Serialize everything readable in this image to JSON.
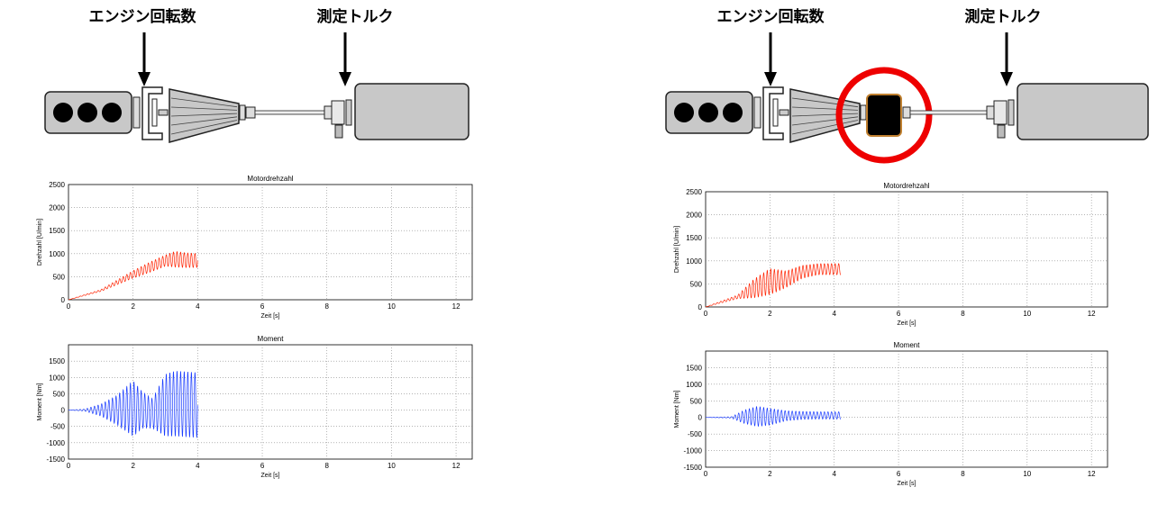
{
  "colors": {
    "rpm": "#ff2200",
    "torque": "#1a3cff",
    "highlight": "#ee0000",
    "body": "#c8c8c8"
  },
  "panels": [
    {
      "id": "left",
      "label_engine": "エンジン回転数",
      "label_torque": "測定トルク",
      "has_damper": false,
      "chart_data": [
        {
          "type": "line",
          "title": "Motordrehzahl",
          "xlabel": "Zeit [s]",
          "ylabel": "Drehzahl [U/min]",
          "xlim": [
            0,
            12.5
          ],
          "ylim": [
            0,
            2500
          ],
          "xticks": [
            0,
            2,
            4,
            6,
            8,
            10,
            12
          ],
          "yticks": [
            0,
            500,
            1000,
            1500,
            2000,
            2500
          ],
          "grid": true,
          "series": [
            {
              "color": "#ff2200",
              "x": [
                0,
                1,
                2,
                2.5,
                3,
                3.3,
                3.6,
                4
              ],
              "y_mid": [
                0,
                200,
                550,
                700,
                850,
                880,
                860,
                850
              ],
              "y_amp": [
                0,
                20,
                80,
                110,
                120,
                170,
                160,
                150
              ]
            }
          ]
        },
        {
          "type": "line",
          "title": "Moment",
          "xlabel": "Zeit [s]",
          "ylabel": "Moment [Nm]",
          "xlim": [
            0,
            12.5
          ],
          "ylim": [
            -1500,
            2000
          ],
          "xticks": [
            0,
            2,
            4,
            6,
            8,
            10,
            12
          ],
          "yticks": [
            -1500,
            -1000,
            -500,
            0,
            500,
            1000,
            1500
          ],
          "grid": true,
          "series": [
            {
              "color": "#1a3cff",
              "x": [
                0,
                0.5,
                1,
                1.5,
                2,
                2.3,
                2.6,
                3,
                3.3,
                3.6,
                4
              ],
              "y_mid": [
                0,
                0,
                0,
                0,
                50,
                0,
                -100,
                150,
                200,
                180,
                150
              ],
              "y_amp": [
                0,
                30,
                180,
                450,
                850,
                550,
                450,
                950,
                1000,
                1000,
                1000
              ]
            }
          ]
        }
      ]
    },
    {
      "id": "right",
      "label_engine": "エンジン回転数",
      "label_torque": "測定トルク",
      "has_damper": true,
      "chart_data": [
        {
          "type": "line",
          "title": "Motordrehzahl",
          "xlabel": "Zeit [s]",
          "ylabel": "Drehzahl [U/min]",
          "xlim": [
            0,
            12.5
          ],
          "ylim": [
            0,
            2500
          ],
          "xticks": [
            0,
            2,
            4,
            6,
            8,
            10,
            12
          ],
          "yticks": [
            0,
            500,
            1000,
            1500,
            2000,
            2500
          ],
          "grid": true,
          "series": [
            {
              "color": "#ff2200",
              "x": [
                0,
                1,
                1.5,
                2,
                2.5,
                3,
                3.5,
                4.2
              ],
              "y_mid": [
                0,
                220,
                400,
                550,
                600,
                760,
                820,
                820
              ],
              "y_amp": [
                0,
                40,
                200,
                280,
                180,
                140,
                120,
                120
              ]
            }
          ]
        },
        {
          "type": "line",
          "title": "Moment",
          "xlabel": "Zeit [s]",
          "ylabel": "Moment [Nm]",
          "xlim": [
            0,
            12.5
          ],
          "ylim": [
            -1500,
            2000
          ],
          "xticks": [
            0,
            2,
            4,
            6,
            8,
            10,
            12
          ],
          "yticks": [
            -1500,
            -1000,
            -500,
            0,
            500,
            1000,
            1500
          ],
          "grid": true,
          "series": [
            {
              "color": "#1a3cff",
              "x": [
                0,
                0.8,
                1.2,
                1.6,
                2,
                2.5,
                3,
                3.5,
                4.2
              ],
              "y_mid": [
                0,
                0,
                20,
                30,
                20,
                50,
                60,
                60,
                60
              ],
              "y_amp": [
                0,
                20,
                200,
                300,
                250,
                150,
                120,
                110,
                110
              ]
            }
          ]
        }
      ]
    }
  ]
}
